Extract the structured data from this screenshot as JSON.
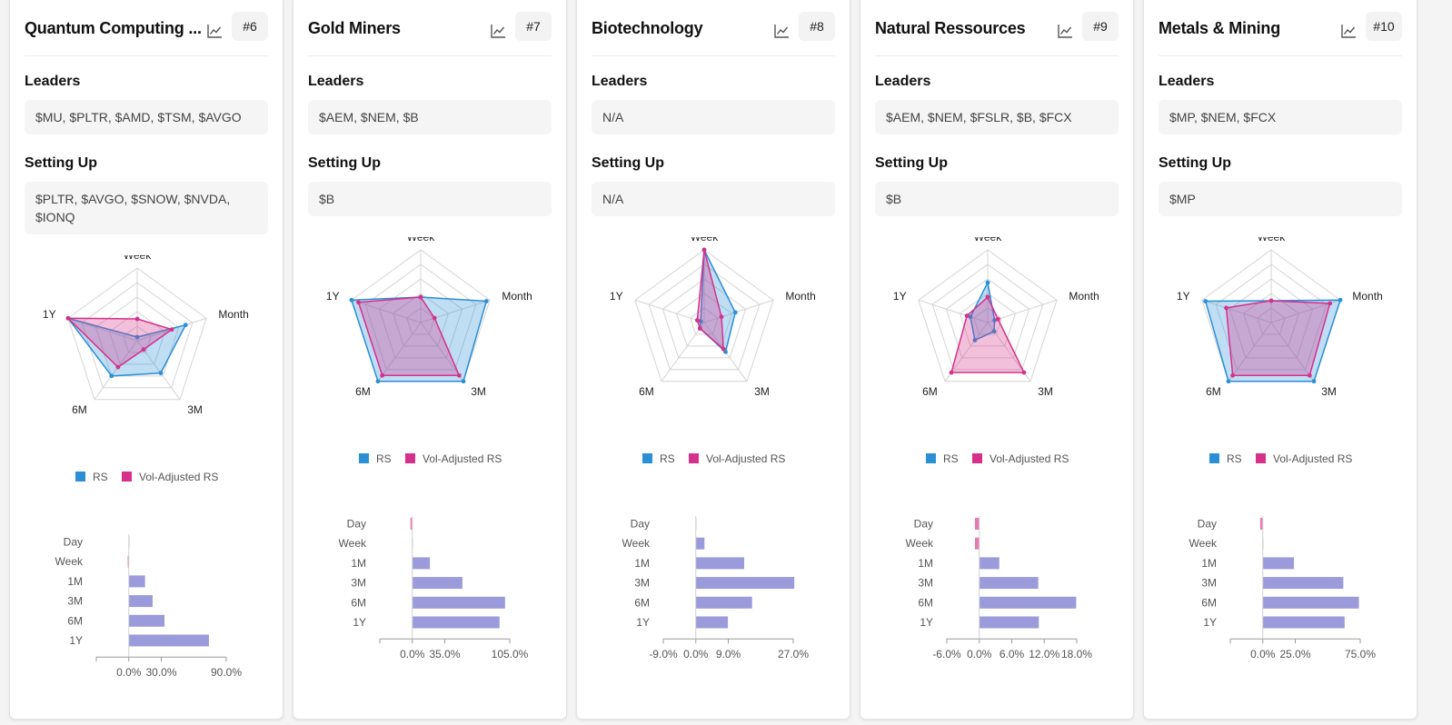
{
  "labels": {
    "leaders": "Leaders",
    "setting_up": "Setting Up"
  },
  "legend": {
    "rs": "RS",
    "vol": "Vol-Adjusted RS"
  },
  "radar_axes": [
    "Week",
    "Month",
    "3M",
    "6M",
    "1Y"
  ],
  "bar_categories": [
    "Day",
    "Week",
    "1M",
    "3M",
    "6M",
    "1Y"
  ],
  "colors": {
    "rs": "#2b8fd6",
    "vol": "#d6308a",
    "bar": "#9b9bdc",
    "bar_negative": "#e67ab3",
    "grid": "#d4d4d4"
  },
  "cards": [
    {
      "title": "Quantum Computing ...",
      "rank": "#6",
      "leaders": "$MU, $PLTR, $AMD, $TSM, $AVGO",
      "setting_up": "$PLTR, $AVGO, $SNOW, $NVDA, $IONQ",
      "chart_data": {
        "type": "radar",
        "axes": [
          "Week",
          "Month",
          "3M",
          "6M",
          "1Y"
        ],
        "series": [
          {
            "name": "RS",
            "values": [
              0.05,
              0.7,
              0.55,
              0.6,
              1.0
            ]
          },
          {
            "name": "Vol-Adjusted RS",
            "values": [
              0.3,
              0.5,
              0.15,
              0.45,
              1.0
            ]
          }
        ],
        "range": [
          0,
          1
        ]
      },
      "bar_chart": {
        "type": "bar",
        "categories": [
          "Day",
          "Week",
          "1M",
          "3M",
          "6M",
          "1Y"
        ],
        "values": [
          0,
          -1,
          15,
          22,
          33,
          74
        ],
        "unit": "%",
        "xlim": [
          -30,
          90
        ],
        "ticks": [
          "0.0%",
          "30.0%",
          "90.0%"
        ]
      }
    },
    {
      "title": "Gold Miners",
      "rank": "#7",
      "leaders": "$AEM, $NEM, $B",
      "setting_up": "$B",
      "chart_data": {
        "type": "radar",
        "axes": [
          "Week",
          "Month",
          "3M",
          "6M",
          "1Y"
        ],
        "series": [
          {
            "name": "RS",
            "values": [
              0.35,
              0.95,
              1.0,
              1.0,
              1.0
            ]
          },
          {
            "name": "Vol-Adjusted RS",
            "values": [
              0.35,
              0.2,
              0.9,
              0.9,
              0.9
            ]
          }
        ],
        "range": [
          0,
          1
        ]
      },
      "bar_chart": {
        "type": "bar",
        "categories": [
          "Day",
          "Week",
          "1M",
          "3M",
          "6M",
          "1Y"
        ],
        "values": [
          -2,
          0,
          19,
          54,
          100,
          94
        ],
        "unit": "%",
        "xlim": [
          -35,
          105
        ],
        "ticks": [
          "0.0%",
          "35.0%",
          "105.0%"
        ]
      }
    },
    {
      "title": "Biotechnology",
      "rank": "#8",
      "leaders": "N/A",
      "setting_up": "N/A",
      "chart_data": {
        "type": "radar",
        "axes": [
          "Week",
          "Month",
          "3M",
          "6M",
          "1Y"
        ],
        "series": [
          {
            "name": "RS",
            "values": [
              1.0,
              0.45,
              0.5,
              0.1,
              0.05
            ]
          },
          {
            "name": "Vol-Adjusted RS",
            "values": [
              1.0,
              0.25,
              0.45,
              0.1,
              0.1
            ]
          }
        ],
        "range": [
          0,
          1
        ]
      },
      "bar_chart": {
        "type": "bar",
        "categories": [
          "Day",
          "Week",
          "1M",
          "3M",
          "6M",
          "1Y"
        ],
        "values": [
          0,
          2.4,
          13.4,
          27.3,
          15.6,
          8.9
        ],
        "unit": "%",
        "xlim": [
          -9,
          27
        ],
        "ticks": [
          "-9.0%",
          "0.0%",
          "9.0%",
          "27.0%"
        ]
      }
    },
    {
      "title": "Natural Ressources",
      "rank": "#9",
      "leaders": "$AEM, $NEM, $FSLR, $B, $FCX",
      "setting_up": "$B",
      "chart_data": {
        "type": "radar",
        "axes": [
          "Week",
          "Month",
          "3M",
          "6M",
          "1Y"
        ],
        "series": [
          {
            "name": "RS",
            "values": [
              0.55,
              0.1,
              0.15,
              0.3,
              0.25
            ]
          },
          {
            "name": "Vol-Adjusted RS",
            "values": [
              0.35,
              0.15,
              0.85,
              0.85,
              0.3
            ]
          }
        ],
        "range": [
          0,
          1
        ]
      },
      "bar_chart": {
        "type": "bar",
        "categories": [
          "Day",
          "Week",
          "1M",
          "3M",
          "6M",
          "1Y"
        ],
        "values": [
          -0.8,
          -0.8,
          3.7,
          10.9,
          17.9,
          11.0
        ],
        "unit": "%",
        "xlim": [
          -6,
          18
        ],
        "ticks": [
          "-6.0%",
          "0.0%",
          "6.0%",
          "12.0%",
          "18.0%"
        ]
      }
    },
    {
      "title": "Metals & Mining",
      "rank": "#10",
      "leaders": "$MP, $NEM, $FCX",
      "setting_up": "$MP",
      "chart_data": {
        "type": "radar",
        "axes": [
          "Week",
          "Month",
          "3M",
          "6M",
          "1Y"
        ],
        "series": [
          {
            "name": "RS",
            "values": [
              0.3,
              1.0,
              1.0,
              1.0,
              0.95
            ]
          },
          {
            "name": "Vol-Adjusted RS",
            "values": [
              0.3,
              0.85,
              0.9,
              0.9,
              0.65
            ]
          }
        ],
        "range": [
          0,
          1
        ]
      },
      "bar_chart": {
        "type": "bar",
        "categories": [
          "Day",
          "Week",
          "1M",
          "3M",
          "6M",
          "1Y"
        ],
        "values": [
          -2,
          0,
          24,
          62,
          74,
          63
        ],
        "unit": "%",
        "xlim": [
          -25,
          75
        ],
        "ticks": [
          "0.0%",
          "25.0%",
          "75.0%"
        ]
      }
    }
  ]
}
